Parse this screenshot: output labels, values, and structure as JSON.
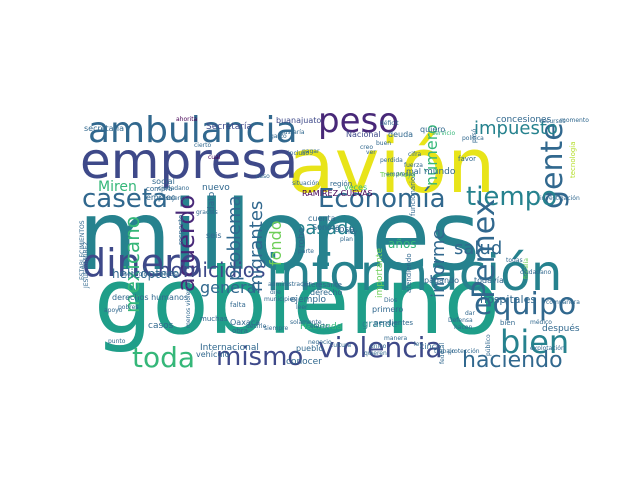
{
  "colors": {
    "viridis": [
      "#440154",
      "#482878",
      "#3e4989",
      "#31688e",
      "#26828e",
      "#1f9e89",
      "#35b779",
      "#6ece58",
      "#b5de2b",
      "#fde725"
    ]
  },
  "words": [
    {
      "text": "millones",
      "c": "#26828e"
    },
    {
      "text": "gobierno",
      "c": "#1f9e89"
    },
    {
      "text": "avión",
      "c": "#e8e419"
    },
    {
      "text": "empresa",
      "c": "#3e4989"
    },
    {
      "text": "información",
      "c": "#26828e"
    },
    {
      "text": "ambulancia",
      "c": "#31688e"
    },
    {
      "text": "dinero",
      "c": "#3e4989"
    },
    {
      "text": "peso",
      "c": "#482878"
    },
    {
      "text": "gente",
      "c": "#31688e"
    },
    {
      "text": "bien",
      "c": "#26828e"
    },
    {
      "text": "equipo",
      "c": "#31688e"
    },
    {
      "text": "violencia",
      "c": "#3e4989"
    },
    {
      "text": "mismo",
      "c": "#3e4989"
    },
    {
      "text": "toda",
      "c": "#35b779"
    },
    {
      "text": "caseta",
      "c": "#31688e"
    },
    {
      "text": "Economía",
      "c": "#31688e"
    },
    {
      "text": "tiempo",
      "c": "#26828e"
    },
    {
      "text": "Pemex",
      "c": "#31688e"
    },
    {
      "text": "acuerdo",
      "c": "#482878"
    },
    {
      "text": "homicidios",
      "c": "#3e4989"
    },
    {
      "text": "haciendo",
      "c": "#31688e"
    },
    {
      "text": "impuesto",
      "c": "#26828e"
    },
    {
      "text": "pasado",
      "c": "#26828e"
    },
    {
      "text": "salud",
      "c": "#31688e"
    },
    {
      "text": "Miren",
      "c": "#35b779"
    },
    {
      "text": "general",
      "c": "#31688e"
    },
    {
      "text": "problema",
      "c": "#31688e"
    },
    {
      "text": "migrantes",
      "c": "#31688e"
    },
    {
      "text": "mexicano",
      "c": "#35b779"
    },
    {
      "text": "fondo",
      "c": "#6ece58"
    },
    {
      "text": "informe",
      "c": "#31688e"
    },
    {
      "text": "número",
      "c": "#35b779"
    },
    {
      "text": "helicóptero",
      "c": "#31688e"
    },
    {
      "text": "hospitales",
      "c": "#31688e"
    },
    {
      "text": "Secretaría",
      "c": "#3e4989"
    },
    {
      "text": "secretaria",
      "c": "#31688e"
    },
    {
      "text": "concesiones",
      "c": "#31688e"
    },
    {
      "text": "Internacional",
      "c": "#31688e"
    },
    {
      "text": "Nacional",
      "c": "#3e4989"
    },
    {
      "text": "RAMÍREZ CUEVAS",
      "c": "#440154"
    },
    {
      "text": "buanajuato",
      "c": "#3e4989"
    },
    {
      "text": "Hacienda",
      "c": "#35b779"
    },
    {
      "text": "grande",
      "c": "#26828e"
    },
    {
      "text": "después",
      "c": "#31688e"
    },
    {
      "text": "pueblo",
      "c": "#31688e"
    },
    {
      "text": "conocer",
      "c": "#31688e"
    },
    {
      "text": "cinco",
      "c": "#31688e"
    },
    {
      "text": "años",
      "c": "#35b779"
    },
    {
      "text": "todavía",
      "c": "#31688e"
    },
    {
      "text": "pagando",
      "c": "#31688e"
    },
    {
      "text": "primero",
      "c": "#31688e"
    },
    {
      "text": "ejemplo",
      "c": "#31688e"
    },
    {
      "text": "derecho",
      "c": "#31688e"
    },
    {
      "text": "vehículo",
      "c": "#31688e"
    },
    {
      "text": "nuevo",
      "c": "#31688e"
    },
    {
      "text": "social",
      "c": "#31688e"
    },
    {
      "text": "casos",
      "c": "#31688e"
    },
    {
      "text": "Oaxaca",
      "c": "#31688e"
    },
    {
      "text": "mundo",
      "c": "#31688e"
    },
    {
      "text": "deuda",
      "c": "#31688e"
    },
    {
      "text": "quiero",
      "c": "#31688e"
    },
    {
      "text": "cosa",
      "c": "#31688e"
    },
    {
      "text": "cuenta",
      "c": "#31688e"
    },
    {
      "text": "Sonora",
      "c": "#31688e"
    },
    {
      "text": "mal",
      "c": "#31688e"
    },
    {
      "text": "veces",
      "c": "#35b779"
    },
    {
      "text": "empleo",
      "c": "#31688e"
    },
    {
      "text": "robo",
      "c": "#31688e"
    },
    {
      "text": "seis",
      "c": "#31688e"
    },
    {
      "text": "muchas",
      "c": "#31688e"
    },
    {
      "text": "obra",
      "c": "#31688e"
    },
    {
      "text": "derechos humanos",
      "c": "#31688e"
    },
    {
      "text": "falta",
      "c": "#31688e"
    },
    {
      "text": "compra",
      "c": "#31688e"
    },
    {
      "text": "dato",
      "c": "#31688e"
    },
    {
      "text": "respecto",
      "c": "#31688e"
    },
    {
      "text": "importante",
      "c": "#6ece58"
    },
    {
      "text": "interesante",
      "c": "#31688e"
    },
    {
      "text": "atendiendo",
      "c": "#31688e"
    },
    {
      "text": "pendientes",
      "c": "#31688e"
    },
    {
      "text": "ahorita",
      "c": "#440154"
    },
    {
      "text": "gustaría",
      "c": "#31688e"
    },
    {
      "text": "déficit",
      "c": "#31688e"
    },
    {
      "text": "Tren Maya",
      "c": "#6ece58"
    },
    {
      "text": "funcionario",
      "c": "#31688e"
    },
    {
      "text": "favor",
      "c": "#31688e"
    },
    {
      "text": "servicio",
      "c": "#35b779"
    },
    {
      "text": "política",
      "c": "#31688e"
    },
    {
      "text": "recursos",
      "c": "#31688e"
    },
    {
      "text": "momento",
      "c": "#31688e"
    },
    {
      "text": "tecnología",
      "c": "#b5de2b"
    },
    {
      "text": "investigación",
      "c": "#31688e"
    },
    {
      "text": "región",
      "c": "#31688e"
    },
    {
      "text": "fuerza",
      "c": "#31688e"
    },
    {
      "text": "situación",
      "c": "#31688e"
    },
    {
      "text": "gasto",
      "c": "#31688e"
    },
    {
      "text": "cierto",
      "c": "#31688e"
    },
    {
      "text": "incluso",
      "c": "#31688e"
    },
    {
      "text": "ciudadano",
      "c": "#31688e"
    },
    {
      "text": "cual",
      "c": "#440154"
    },
    {
      "text": "parte",
      "c": "#31688e"
    },
    {
      "text": "plan",
      "c": "#31688e"
    },
    {
      "text": "hoy",
      "c": "#31688e"
    },
    {
      "text": "fiscalía",
      "c": "#6ece58"
    },
    {
      "text": "ciudadano",
      "c": "#31688e"
    },
    {
      "text": "compañera",
      "c": "#31688e"
    },
    {
      "text": "médico",
      "c": "#31688e"
    },
    {
      "text": "explotación",
      "c": "#31688e"
    },
    {
      "text": "hacen",
      "c": "#31688e"
    },
    {
      "text": "bien",
      "c": "#31688e"
    },
    {
      "text": "dar",
      "c": "#31688e"
    },
    {
      "text": "Defensa",
      "c": "#31688e"
    },
    {
      "text": "ley",
      "c": "#31688e"
    },
    {
      "text": "manera",
      "c": "#31688e"
    },
    {
      "text": "único",
      "c": "#31688e"
    },
    {
      "text": "federal",
      "c": "#31688e"
    },
    {
      "text": "trabajo",
      "c": "#31688e"
    },
    {
      "text": "protección",
      "c": "#31688e"
    },
    {
      "text": "público",
      "c": "#31688e"
    },
    {
      "text": "Dios",
      "c": "#31688e"
    },
    {
      "text": "municipios",
      "c": "#31688e"
    },
    {
      "text": "administración",
      "c": "#31688e"
    },
    {
      "text": "dije",
      "c": "#31688e"
    },
    {
      "text": "leer",
      "c": "#31688e"
    },
    {
      "text": "siempre",
      "c": "#31688e"
    },
    {
      "text": "decirle",
      "c": "#31688e"
    },
    {
      "text": "efecto",
      "c": "#31688e"
    },
    {
      "text": "cultura",
      "c": "#31688e"
    },
    {
      "text": "negocio",
      "c": "#31688e"
    },
    {
      "text": "pagar",
      "c": "#31688e"
    },
    {
      "text": "creo",
      "c": "#31688e"
    },
    {
      "text": "ver",
      "c": "#31688e"
    },
    {
      "text": "perdida",
      "c": "#31688e"
    },
    {
      "text": "cifra",
      "c": "#31688e"
    },
    {
      "text": "buen",
      "c": "#31688e"
    },
    {
      "text": "pasó",
      "c": "#31688e"
    },
    {
      "text": "menos violencia",
      "c": "#31688e"
    },
    {
      "text": "JESÚS RAMÍREZ",
      "c": "#31688e"
    },
    {
      "text": "ESTABLECIMIENTOS",
      "c": "#31688e"
    },
    {
      "text": "servicios públicos",
      "c": "#31688e"
    },
    {
      "text": "pobres",
      "c": "#31688e"
    },
    {
      "text": "apoyo",
      "c": "#31688e"
    },
    {
      "text": "punto",
      "c": "#31688e"
    },
    {
      "text": "empresas",
      "c": "#31688e"
    },
    {
      "text": "pasajeros",
      "c": "#31688e"
    },
    {
      "text": "gracias",
      "c": "#31688e"
    },
    {
      "text": "caso",
      "c": "#31688e"
    },
    {
      "text": "solamente",
      "c": "#31688e"
    },
    {
      "text": "quieren",
      "c": "#31688e"
    },
    {
      "text": "todas",
      "c": "#31688e"
    }
  ]
}
